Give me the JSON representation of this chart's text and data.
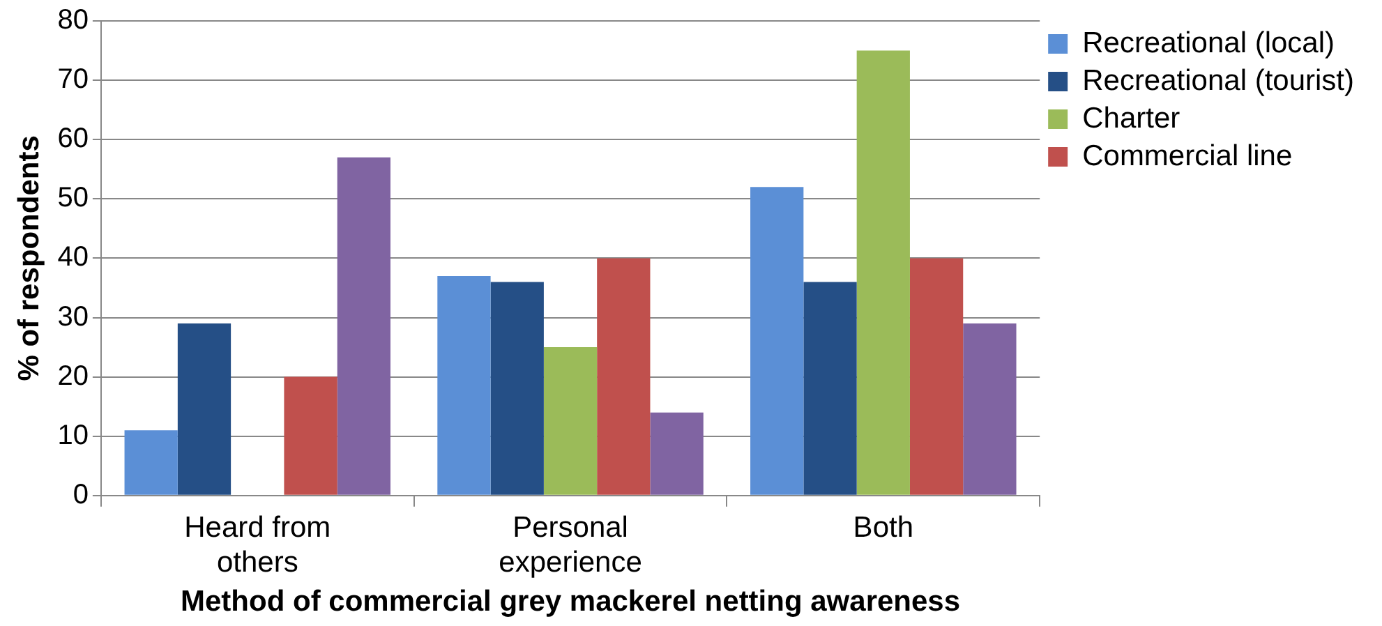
{
  "chart_data": {
    "type": "bar",
    "xlabel": "Method of commercial grey mackerel netting awareness",
    "ylabel": "% of respondents",
    "categories": [
      "Heard from others",
      "Personal experience",
      "Both"
    ],
    "series": [
      {
        "name": "Recreational (local)",
        "color": "#5b8fd6",
        "values": [
          11,
          37,
          52
        ]
      },
      {
        "name": "Recreational (tourist)",
        "color": "#254f86",
        "values": [
          29,
          36,
          36
        ]
      },
      {
        "name": "Charter",
        "color": "#9bbb59",
        "values": [
          0,
          25,
          75
        ]
      },
      {
        "name": "Commercial line",
        "color": "#c0504d",
        "values": [
          20,
          40,
          40
        ]
      },
      {
        "color": "#8064a2",
        "values": [
          57,
          14,
          29
        ]
      }
    ],
    "ylim": [
      0,
      80
    ],
    "yticks": [
      0,
      10,
      20,
      30,
      40,
      50,
      60,
      70,
      80
    ],
    "grid": "y",
    "legend": "top right"
  }
}
